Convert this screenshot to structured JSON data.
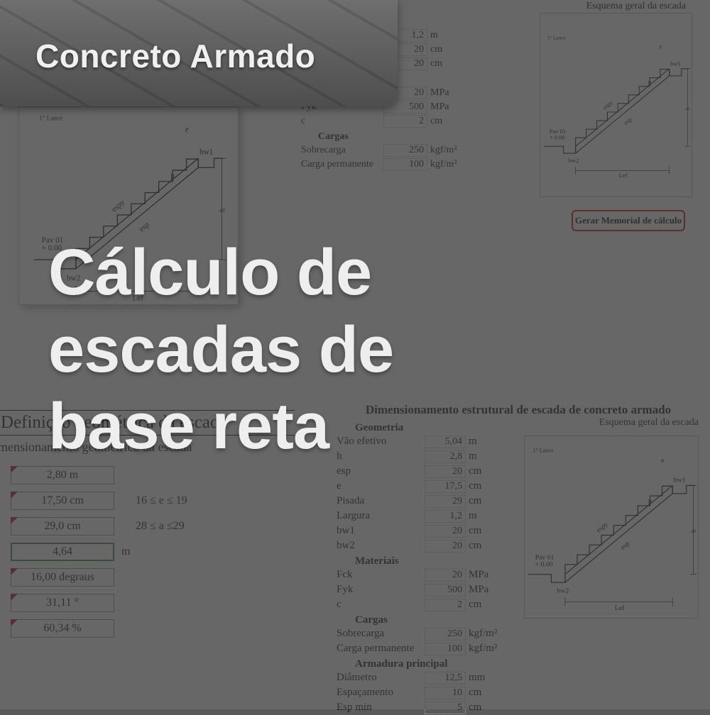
{
  "colors": {
    "overlay": "rgba(60,60,60,0.78)",
    "title_text": "#eeeeee",
    "accent_red": "#cc0000",
    "accent_green": "#2e8b2e",
    "marker_red": "#c00000",
    "stair_stroke": "#000000",
    "panel_bg": "#ffffff"
  },
  "header": {
    "category": "Concreto Armado",
    "title_line1": "Cálculo de",
    "title_line2": "escadas de",
    "title_line3": "base reta"
  },
  "schema": {
    "caption_main": "Esquema geral da escada",
    "lance_label": "1° Lance",
    "pav_label1": "Pav 01",
    "pav_label2": "+ 0.00",
    "dim_h": "h",
    "dim_e": "e",
    "dim_p": "p",
    "dim_espy": "espy",
    "dim_esp": "esp",
    "dim_bw1": "bw1",
    "dim_bw2": "bw2",
    "dim_lef": "Lef"
  },
  "params_top": {
    "largura_label": "Largura",
    "largura_val": "1,2",
    "largura_unit": "m",
    "bw1_label": "bw1",
    "bw1_val": "20",
    "bw1_unit": "cm",
    "bw2_label": "bw2",
    "bw2_val": "20",
    "bw2_unit": "cm",
    "sect_mat": "Materiais",
    "fck_label": "Fck",
    "fck_val": "20",
    "fck_unit": "MPa",
    "fyk_label": "Fyk",
    "fyk_val": "500",
    "fyk_unit": "MPa",
    "c_label": "c",
    "c_val": "2",
    "c_unit": "cm",
    "sect_cargas": "Cargas",
    "sobrecarga_label": "Sobrecarga",
    "sobrecarga_val": "250",
    "sobrecarga_unit": "kgf/m²",
    "cargaperm_label": "Carga permanente",
    "cargaperm_val": "100",
    "cargaperm_unit": "kgf/m²"
  },
  "button": {
    "label": "Gerar Memorial de cálculo"
  },
  "geo_def": {
    "title": "Definição geométrica da escada",
    "subtitle": "mensionamento geométrico da escada",
    "rows": [
      {
        "val": "2,80 m",
        "unit": "",
        "note": ""
      },
      {
        "val": "17,50 cm",
        "unit": "",
        "note": "16 ≤ e ≤ 19"
      },
      {
        "val": "29,0 cm",
        "unit": "",
        "note": "28 ≤ a ≤29"
      },
      {
        "val": "4,64",
        "unit": "m",
        "note": "",
        "green": true
      },
      {
        "val": "16,00 degraus",
        "unit": "",
        "note": ""
      },
      {
        "val": "31,11 °",
        "unit": "",
        "note": ""
      },
      {
        "val": "60,34 %",
        "unit": "",
        "note": ""
      }
    ]
  },
  "dim_full": {
    "title": "Dimensionamento estrutural de escada de concreto armado",
    "sect_geom": "Geometria",
    "geom": [
      {
        "lbl": "Vão efetivo",
        "val": "5,04",
        "unit": "m"
      },
      {
        "lbl": "h",
        "val": "2,8",
        "unit": "m"
      },
      {
        "lbl": "esp",
        "val": "20",
        "unit": "cm"
      },
      {
        "lbl": "e",
        "val": "17,5",
        "unit": "cm"
      },
      {
        "lbl": "Pisada",
        "val": "29",
        "unit": "cm"
      },
      {
        "lbl": "Largura",
        "val": "1,2",
        "unit": "m"
      },
      {
        "lbl": "bw1",
        "val": "20",
        "unit": "cm"
      },
      {
        "lbl": "bw2",
        "val": "20",
        "unit": "cm"
      }
    ],
    "sect_mat": "Materiais",
    "mat": [
      {
        "lbl": "Fck",
        "val": "20",
        "unit": "MPa"
      },
      {
        "lbl": "Fyk",
        "val": "500",
        "unit": "MPa"
      },
      {
        "lbl": "c",
        "val": "2",
        "unit": "cm"
      }
    ],
    "sect_cargas": "Cargas",
    "cargas": [
      {
        "lbl": "Sobrecarga",
        "val": "250",
        "unit": "kgf/m²"
      },
      {
        "lbl": "Carga permanente",
        "val": "100",
        "unit": "kgf/m²"
      }
    ],
    "sect_arm": "Armadura principal",
    "arm": [
      {
        "lbl": "Diâmetro",
        "val": "12,5",
        "unit": "mm"
      },
      {
        "lbl": "Espaçamento",
        "val": "10",
        "unit": "cm"
      },
      {
        "lbl": "Esp min",
        "val": "5",
        "unit": "cm"
      }
    ]
  }
}
